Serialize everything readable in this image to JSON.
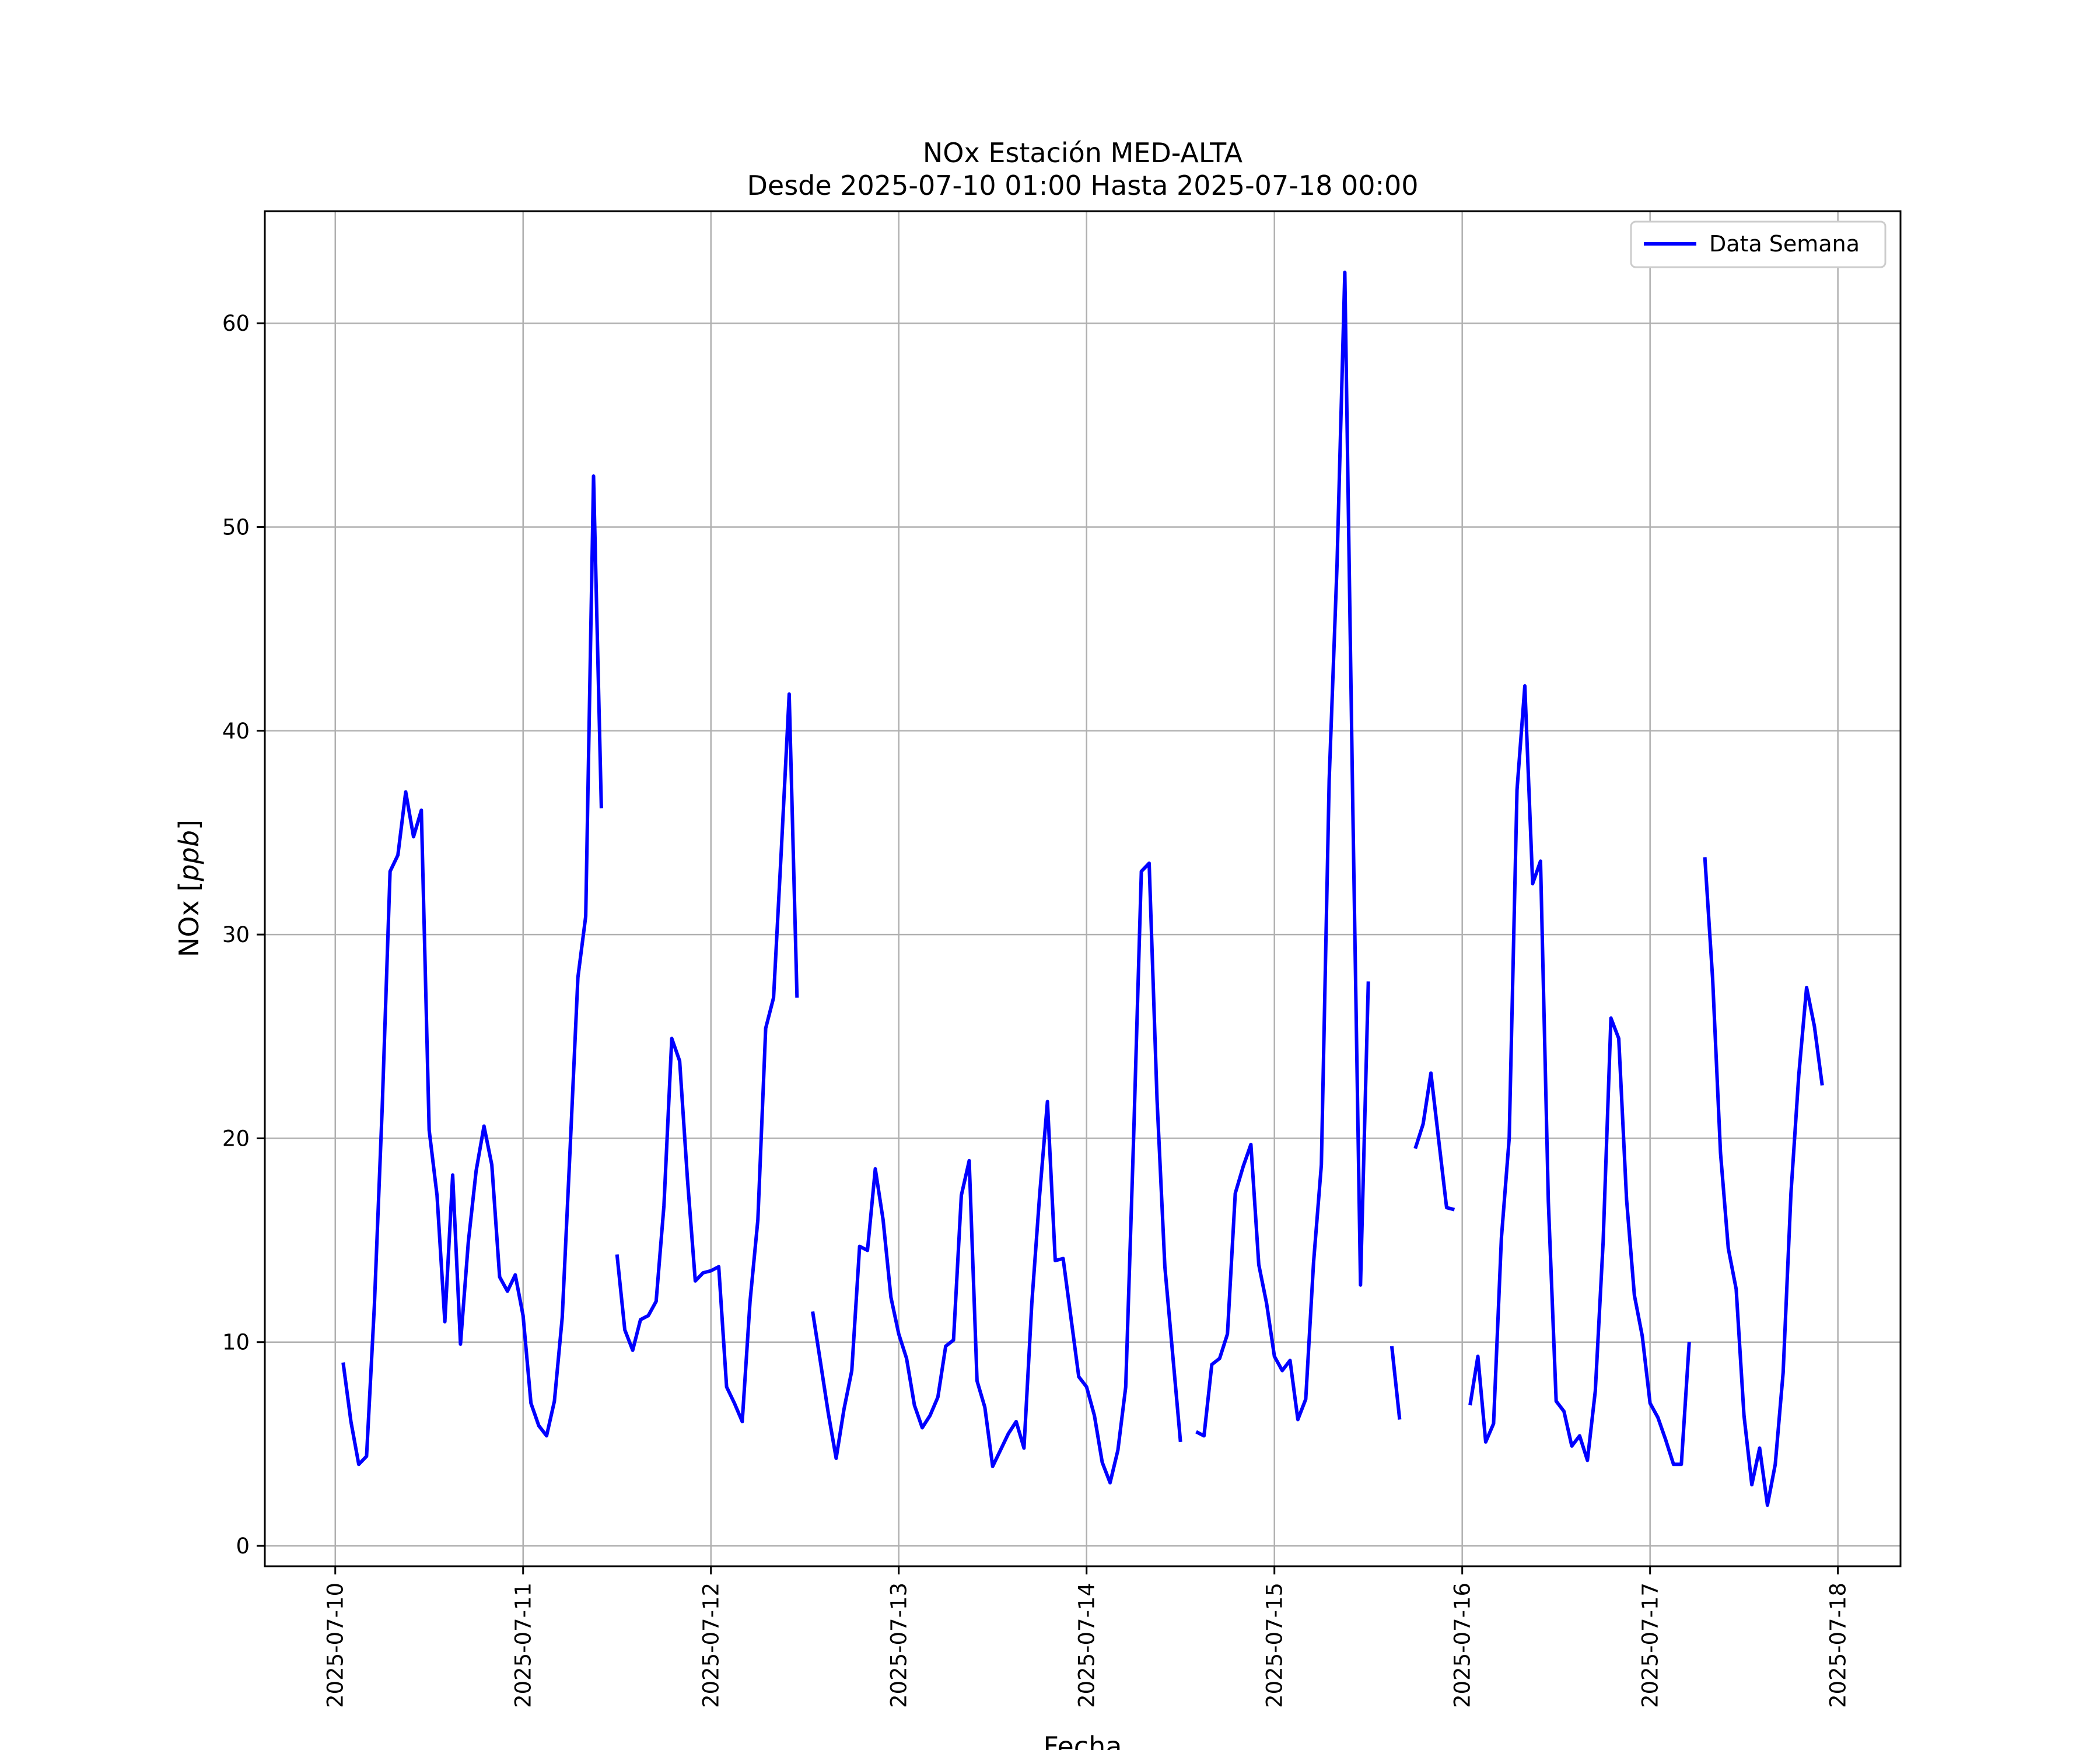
{
  "chart_data": {
    "type": "line",
    "title": "NOx Estación MED-ALTA",
    "subtitle": "Desde 2025-07-10 01:00 Hasta 2025-07-18 00:00",
    "xlabel": "Fecha",
    "ylabel_prefix": "NOx [",
    "ylabel_unit": "ppb",
    "ylabel_suffix": "]",
    "ylim": [
      -1,
      65.5
    ],
    "xlim": [
      "2025-07-09 15:00",
      "2025-07-18 08:00"
    ],
    "y_ticks": [
      0,
      10,
      20,
      30,
      40,
      50,
      60
    ],
    "x_ticks": [
      "2025-07-10",
      "2025-07-11",
      "2025-07-12",
      "2025-07-13",
      "2025-07-14",
      "2025-07-15",
      "2025-07-16",
      "2025-07-17",
      "2025-07-18"
    ],
    "grid": true,
    "legend": {
      "position": "top-right",
      "label": "Data Semana"
    },
    "colors": {
      "line": "#0000ff",
      "grid": "#b0b0b0",
      "axes": "#000000"
    },
    "series": [
      {
        "name": "Data Semana",
        "points": [
          [
            "2025-07-10 01:00",
            9.0
          ],
          [
            "2025-07-10 02:00",
            6.1
          ],
          [
            "2025-07-10 03:00",
            4.0
          ],
          [
            "2025-07-10 04:00",
            4.4
          ],
          [
            "2025-07-10 05:00",
            11.8
          ],
          [
            "2025-07-10 06:00",
            21.5
          ],
          [
            "2025-07-10 07:00",
            33.1
          ],
          [
            "2025-07-10 08:00",
            33.9
          ],
          [
            "2025-07-10 09:00",
            37.0
          ],
          [
            "2025-07-10 10:00",
            34.8
          ],
          [
            "2025-07-10 11:00",
            36.1
          ],
          [
            "2025-07-10 12:00",
            20.4
          ],
          [
            "2025-07-10 13:00",
            17.2
          ],
          [
            "2025-07-10 14:00",
            11.0
          ],
          [
            "2025-07-10 15:00",
            18.2
          ],
          [
            "2025-07-10 16:00",
            9.9
          ],
          [
            "2025-07-10 17:00",
            14.9
          ],
          [
            "2025-07-10 18:00",
            18.4
          ],
          [
            "2025-07-10 19:00",
            20.6
          ],
          [
            "2025-07-10 20:00",
            18.7
          ],
          [
            "2025-07-10 21:00",
            13.2
          ],
          [
            "2025-07-10 22:00",
            12.5
          ],
          [
            "2025-07-10 23:00",
            13.3
          ],
          [
            "2025-07-11 00:00",
            11.3
          ],
          [
            "2025-07-11 01:00",
            7.0
          ],
          [
            "2025-07-11 02:00",
            5.9
          ],
          [
            "2025-07-11 03:00",
            5.4
          ],
          [
            "2025-07-11 04:00",
            7.1
          ],
          [
            "2025-07-11 05:00",
            11.2
          ],
          [
            "2025-07-11 06:00",
            19.4
          ],
          [
            "2025-07-11 07:00",
            27.9
          ],
          [
            "2025-07-11 08:00",
            30.9
          ],
          [
            "2025-07-11 09:00",
            52.5
          ],
          [
            "2025-07-11 10:00",
            36.2
          ],
          [
            "2025-07-11 11:00",
            null
          ],
          [
            "2025-07-11 12:00",
            14.3
          ],
          [
            "2025-07-11 13:00",
            10.6
          ],
          [
            "2025-07-11 14:00",
            9.6
          ],
          [
            "2025-07-11 15:00",
            11.1
          ],
          [
            "2025-07-11 16:00",
            11.3
          ],
          [
            "2025-07-11 17:00",
            12.0
          ],
          [
            "2025-07-11 18:00",
            16.7
          ],
          [
            "2025-07-11 19:00",
            24.9
          ],
          [
            "2025-07-11 20:00",
            23.8
          ],
          [
            "2025-07-11 21:00",
            18.0
          ],
          [
            "2025-07-11 22:00",
            13.0
          ],
          [
            "2025-07-11 23:00",
            13.4
          ],
          [
            "2025-07-12 00:00",
            13.5
          ],
          [
            "2025-07-12 01:00",
            13.7
          ],
          [
            "2025-07-12 02:00",
            7.8
          ],
          [
            "2025-07-12 03:00",
            7.0
          ],
          [
            "2025-07-12 04:00",
            6.1
          ],
          [
            "2025-07-12 05:00",
            12.0
          ],
          [
            "2025-07-12 06:00",
            16.0
          ],
          [
            "2025-07-12 07:00",
            25.4
          ],
          [
            "2025-07-12 08:00",
            26.9
          ],
          [
            "2025-07-12 09:00",
            34.2
          ],
          [
            "2025-07-12 10:00",
            41.8
          ],
          [
            "2025-07-12 11:00",
            26.9
          ],
          [
            "2025-07-12 12:00",
            null
          ],
          [
            "2025-07-12 13:00",
            11.5
          ],
          [
            "2025-07-12 14:00",
            9.0
          ],
          [
            "2025-07-12 15:00",
            6.5
          ],
          [
            "2025-07-12 16:00",
            4.3
          ],
          [
            "2025-07-12 17:00",
            6.7
          ],
          [
            "2025-07-12 18:00",
            8.6
          ],
          [
            "2025-07-12 19:00",
            14.7
          ],
          [
            "2025-07-12 20:00",
            14.5
          ],
          [
            "2025-07-12 21:00",
            18.5
          ],
          [
            "2025-07-12 22:00",
            16.0
          ],
          [
            "2025-07-12 23:00",
            12.2
          ],
          [
            "2025-07-13 00:00",
            10.4
          ],
          [
            "2025-07-13 01:00",
            9.2
          ],
          [
            "2025-07-13 02:00",
            6.9
          ],
          [
            "2025-07-13 03:00",
            5.8
          ],
          [
            "2025-07-13 04:00",
            6.4
          ],
          [
            "2025-07-13 05:00",
            7.3
          ],
          [
            "2025-07-13 06:00",
            9.8
          ],
          [
            "2025-07-13 07:00",
            10.1
          ],
          [
            "2025-07-13 08:00",
            17.2
          ],
          [
            "2025-07-13 09:00",
            18.9
          ],
          [
            "2025-07-13 10:00",
            8.1
          ],
          [
            "2025-07-13 11:00",
            6.8
          ],
          [
            "2025-07-13 12:00",
            3.9
          ],
          [
            "2025-07-13 13:00",
            4.7
          ],
          [
            "2025-07-13 14:00",
            5.5
          ],
          [
            "2025-07-13 15:00",
            6.1
          ],
          [
            "2025-07-13 16:00",
            4.8
          ],
          [
            "2025-07-13 17:00",
            11.9
          ],
          [
            "2025-07-13 18:00",
            17.2
          ],
          [
            "2025-07-13 19:00",
            21.8
          ],
          [
            "2025-07-13 20:00",
            14.0
          ],
          [
            "2025-07-13 21:00",
            14.1
          ],
          [
            "2025-07-13 22:00",
            11.2
          ],
          [
            "2025-07-13 23:00",
            8.3
          ],
          [
            "2025-07-14 00:00",
            7.8
          ],
          [
            "2025-07-14 01:00",
            6.4
          ],
          [
            "2025-07-14 02:00",
            4.1
          ],
          [
            "2025-07-14 03:00",
            3.1
          ],
          [
            "2025-07-14 04:00",
            4.7
          ],
          [
            "2025-07-14 05:00",
            7.8
          ],
          [
            "2025-07-14 06:00",
            19.9
          ],
          [
            "2025-07-14 07:00",
            33.1
          ],
          [
            "2025-07-14 08:00",
            33.5
          ],
          [
            "2025-07-14 09:00",
            21.9
          ],
          [
            "2025-07-14 10:00",
            13.7
          ],
          [
            "2025-07-14 11:00",
            9.4
          ],
          [
            "2025-07-14 12:00",
            5.1
          ],
          [
            "2025-07-14 13:00",
            null
          ],
          [
            "2025-07-14 14:00",
            5.6
          ],
          [
            "2025-07-14 15:00",
            5.4
          ],
          [
            "2025-07-14 16:00",
            8.9
          ],
          [
            "2025-07-14 17:00",
            9.2
          ],
          [
            "2025-07-14 18:00",
            10.4
          ],
          [
            "2025-07-14 19:00",
            17.3
          ],
          [
            "2025-07-14 20:00",
            18.6
          ],
          [
            "2025-07-14 21:00",
            19.7
          ],
          [
            "2025-07-14 22:00",
            13.8
          ],
          [
            "2025-07-14 23:00",
            11.9
          ],
          [
            "2025-07-15 00:00",
            9.3
          ],
          [
            "2025-07-15 01:00",
            8.6
          ],
          [
            "2025-07-15 02:00",
            9.1
          ],
          [
            "2025-07-15 03:00",
            6.2
          ],
          [
            "2025-07-15 04:00",
            7.2
          ],
          [
            "2025-07-15 05:00",
            13.9
          ],
          [
            "2025-07-15 06:00",
            18.7
          ],
          [
            "2025-07-15 07:00",
            37.6
          ],
          [
            "2025-07-15 08:00",
            48.1
          ],
          [
            "2025-07-15 09:00",
            62.5
          ],
          [
            "2025-07-15 10:00",
            36.6
          ],
          [
            "2025-07-15 11:00",
            12.8
          ],
          [
            "2025-07-15 12:00",
            27.7
          ],
          [
            "2025-07-15 13:00",
            null
          ],
          [
            "2025-07-15 14:00",
            null
          ],
          [
            "2025-07-15 15:00",
            9.8
          ],
          [
            "2025-07-15 16:00",
            6.2
          ],
          [
            "2025-07-15 17:00",
            null
          ],
          [
            "2025-07-15 18:00",
            19.5
          ],
          [
            "2025-07-15 19:00",
            20.7
          ],
          [
            "2025-07-15 20:00",
            23.2
          ],
          [
            "2025-07-15 21:00",
            19.9
          ],
          [
            "2025-07-15 22:00",
            16.6
          ],
          [
            "2025-07-15 23:00",
            16.5
          ],
          [
            "2025-07-16 00:00",
            null
          ],
          [
            "2025-07-16 01:00",
            6.9
          ],
          [
            "2025-07-16 02:00",
            9.3
          ],
          [
            "2025-07-16 03:00",
            5.1
          ],
          [
            "2025-07-16 04:00",
            6.0
          ],
          [
            "2025-07-16 05:00",
            15.1
          ],
          [
            "2025-07-16 06:00",
            20.0
          ],
          [
            "2025-07-16 07:00",
            37.1
          ],
          [
            "2025-07-16 08:00",
            42.2
          ],
          [
            "2025-07-16 09:00",
            32.5
          ],
          [
            "2025-07-16 10:00",
            33.6
          ],
          [
            "2025-07-16 11:00",
            16.9
          ],
          [
            "2025-07-16 12:00",
            7.1
          ],
          [
            "2025-07-16 13:00",
            6.6
          ],
          [
            "2025-07-16 14:00",
            4.9
          ],
          [
            "2025-07-16 15:00",
            5.4
          ],
          [
            "2025-07-16 16:00",
            4.2
          ],
          [
            "2025-07-16 17:00",
            7.6
          ],
          [
            "2025-07-16 18:00",
            14.9
          ],
          [
            "2025-07-16 19:00",
            25.9
          ],
          [
            "2025-07-16 20:00",
            24.9
          ],
          [
            "2025-07-16 21:00",
            17.0
          ],
          [
            "2025-07-16 22:00",
            12.3
          ],
          [
            "2025-07-16 23:00",
            10.3
          ],
          [
            "2025-07-17 00:00",
            7.0
          ],
          [
            "2025-07-17 01:00",
            6.3
          ],
          [
            "2025-07-17 02:00",
            5.2
          ],
          [
            "2025-07-17 03:00",
            4.0
          ],
          [
            "2025-07-17 04:00",
            4.0
          ],
          [
            "2025-07-17 05:00",
            10.0
          ],
          [
            "2025-07-17 06:00",
            null
          ],
          [
            "2025-07-17 07:00",
            33.8
          ],
          [
            "2025-07-17 08:00",
            27.8
          ],
          [
            "2025-07-17 09:00",
            19.3
          ],
          [
            "2025-07-17 10:00",
            14.6
          ],
          [
            "2025-07-17 11:00",
            12.6
          ],
          [
            "2025-07-17 12:00",
            6.4
          ],
          [
            "2025-07-17 13:00",
            3.0
          ],
          [
            "2025-07-17 14:00",
            4.8
          ],
          [
            "2025-07-17 15:00",
            2.0
          ],
          [
            "2025-07-17 16:00",
            4.0
          ],
          [
            "2025-07-17 17:00",
            8.5
          ],
          [
            "2025-07-17 18:00",
            17.3
          ],
          [
            "2025-07-17 19:00",
            23.1
          ],
          [
            "2025-07-17 20:00",
            27.4
          ],
          [
            "2025-07-17 21:00",
            25.5
          ],
          [
            "2025-07-17 22:00",
            22.6
          ]
        ]
      }
    ]
  }
}
